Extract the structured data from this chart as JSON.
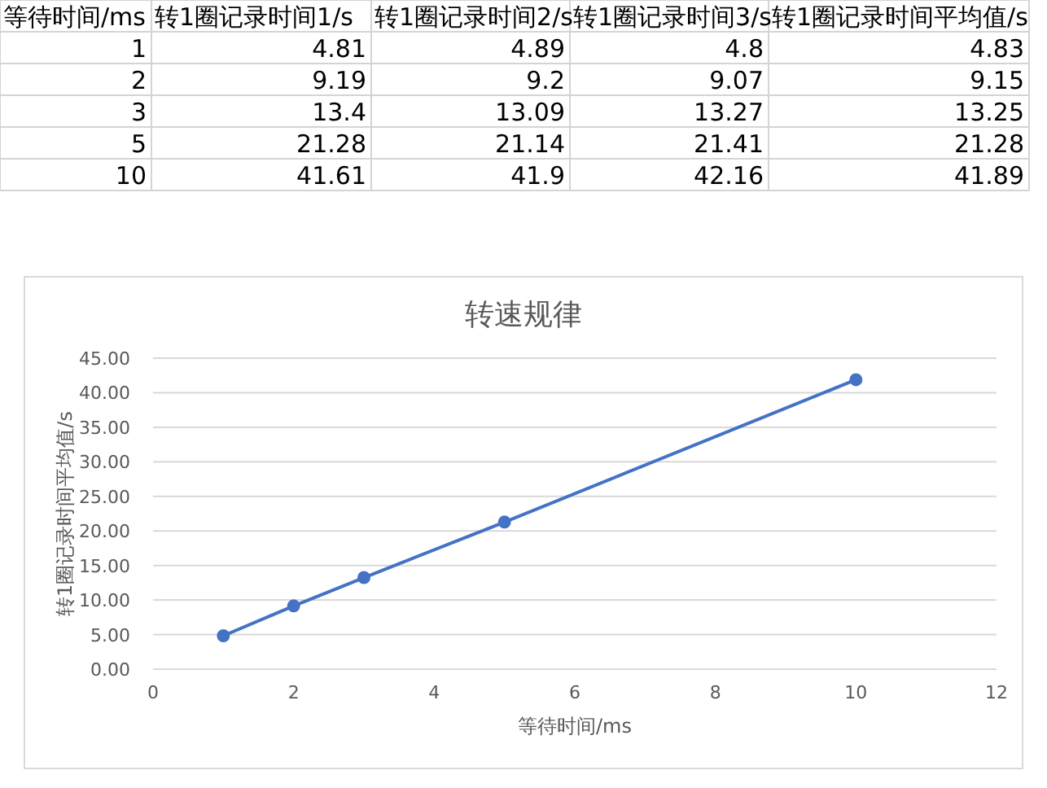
{
  "chart_data": [
    {
      "type": "other",
      "categories": [
        "等待时间/ms",
        "转1圈记录时间1/s",
        "转1圈记录时间2/s",
        "转1圈记录时间3/s",
        "转1圈记录时间平均值/s"
      ],
      "annotations": [
        "1",
        "4.81",
        "4.89",
        "4.8",
        "4.83",
        "2",
        "9.19",
        "9.2",
        "9.07",
        "9.15",
        "3",
        "13.4",
        "13.09",
        "13.27",
        "13.25",
        "5",
        "21.28",
        "21.14",
        "21.41",
        "21.28",
        "10",
        "41.61",
        "41.9",
        "42.16",
        "41.89"
      ]
    },
    {
      "type": "line",
      "title": "转速规律",
      "xlabel": "等待时间/ms",
      "ylabel": "转1圈记录时间平均值/s",
      "x": [
        1,
        2,
        3,
        5,
        10
      ],
      "series": [
        {
          "color": "#4472c4",
          "values": [
            4.83,
            9.15,
            13.25,
            21.28,
            41.89
          ]
        }
      ],
      "xlim": [
        0,
        12
      ],
      "xticks": [
        0,
        2,
        4,
        6,
        8,
        10,
        12
      ],
      "ylim": [
        0,
        45
      ],
      "yticks": [
        {
          "value": 0,
          "label": "0.00"
        },
        {
          "value": 5,
          "label": "5.00"
        },
        {
          "value": 10,
          "label": "10.00"
        },
        {
          "value": 15,
          "label": "15.00"
        },
        {
          "value": 20,
          "label": "20.00"
        },
        {
          "value": 25,
          "label": "25.00"
        },
        {
          "value": 30,
          "label": "30.00"
        },
        {
          "value": 35,
          "label": "35.00"
        },
        {
          "value": 40,
          "label": "40.00"
        },
        {
          "value": 45,
          "label": "45.00"
        }
      ],
      "grid": "y",
      "marker": "circle",
      "line_style": "solid"
    }
  ]
}
